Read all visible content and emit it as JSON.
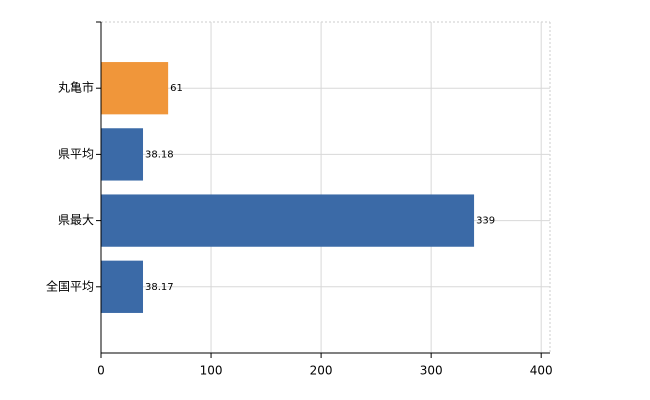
{
  "chart_data": {
    "type": "bar",
    "orientation": "horizontal",
    "categories": [
      "丸亀市",
      "県平均",
      "県最大",
      "全国平均"
    ],
    "values": [
      61,
      38.18,
      339,
      38.17
    ],
    "colors": [
      "#f0963a",
      "#3b6aa7",
      "#3b6aa7",
      "#3b6aa7"
    ],
    "xlim": [
      0,
      408
    ],
    "xticks": [
      0,
      100,
      200,
      300,
      400
    ],
    "grid": true
  }
}
